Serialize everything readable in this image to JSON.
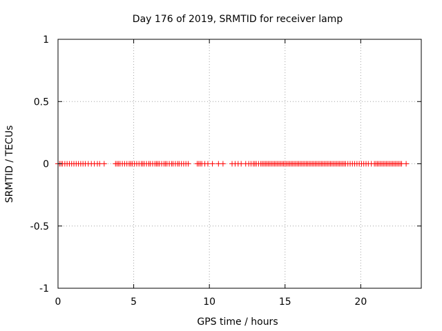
{
  "chart_data": {
    "type": "scatter",
    "title": "Day 176 of 2019, SRMTID for receiver lamp",
    "xlabel": "GPS time / hours",
    "ylabel": "SRMTID / TECUs",
    "xlim": [
      0,
      24
    ],
    "ylim": [
      -1,
      1
    ],
    "xticks": [
      0,
      5,
      10,
      15,
      20
    ],
    "yticks": [
      -1,
      -0.5,
      0,
      0.5,
      1
    ],
    "xtick_labels": [
      "0",
      "5",
      "10",
      "15",
      "20"
    ],
    "ytick_labels": [
      "-1",
      "-0.5",
      "0",
      "0.5",
      "1"
    ],
    "grid": true,
    "marker": "+",
    "series": [
      {
        "name": "SRMTID",
        "color": "#ff0000",
        "x": [
          0.0,
          0.1,
          0.2,
          0.3,
          0.45,
          0.6,
          0.75,
          0.9,
          1.05,
          1.2,
          1.35,
          1.5,
          1.65,
          1.8,
          2.0,
          2.2,
          2.4,
          2.6,
          2.75,
          3.05,
          3.8,
          3.9,
          4.0,
          4.1,
          4.25,
          4.4,
          4.55,
          4.7,
          4.8,
          4.9,
          5.05,
          5.2,
          5.35,
          5.5,
          5.6,
          5.7,
          5.85,
          6.0,
          6.1,
          6.25,
          6.4,
          6.5,
          6.6,
          6.7,
          6.85,
          7.0,
          7.1,
          7.2,
          7.35,
          7.5,
          7.6,
          7.75,
          7.9,
          8.0,
          8.15,
          8.3,
          8.45,
          8.6,
          9.2,
          9.3,
          9.4,
          9.5,
          9.7,
          9.9,
          10.2,
          10.6,
          10.9,
          11.5,
          11.7,
          11.9,
          12.1,
          12.4,
          12.6,
          12.75,
          12.9,
          13.0,
          13.1,
          13.25,
          13.4,
          13.5,
          13.6,
          13.7,
          13.8,
          13.9,
          14.0,
          14.1,
          14.2,
          14.3,
          14.4,
          14.5,
          14.6,
          14.7,
          14.8,
          14.9,
          15.0,
          15.1,
          15.2,
          15.3,
          15.4,
          15.5,
          15.6,
          15.7,
          15.8,
          15.9,
          16.0,
          16.1,
          16.2,
          16.3,
          16.4,
          16.5,
          16.6,
          16.7,
          16.8,
          16.9,
          17.0,
          17.1,
          17.2,
          17.3,
          17.4,
          17.5,
          17.6,
          17.7,
          17.8,
          17.9,
          18.0,
          18.1,
          18.2,
          18.3,
          18.4,
          18.5,
          18.6,
          18.7,
          18.8,
          18.9,
          19.0,
          19.15,
          19.3,
          19.45,
          19.6,
          19.75,
          19.9,
          20.05,
          20.2,
          20.35,
          20.5,
          20.7,
          20.9,
          21.0,
          21.1,
          21.2,
          21.3,
          21.4,
          21.5,
          21.6,
          21.7,
          21.8,
          21.9,
          22.0,
          22.1,
          22.2,
          22.3,
          22.4,
          22.5,
          22.6,
          22.7,
          23.0
        ],
        "y": [
          0,
          0,
          0,
          0,
          0,
          0,
          0,
          0,
          0,
          0,
          0,
          0,
          0,
          0,
          0,
          0,
          0,
          0,
          0,
          0,
          0,
          0,
          0,
          0,
          0,
          0,
          0,
          0,
          0,
          0,
          0,
          0,
          0,
          0,
          0,
          0,
          0,
          0,
          0,
          0,
          0,
          0,
          0,
          0,
          0,
          0,
          0,
          0,
          0,
          0,
          0,
          0,
          0,
          0,
          0,
          0,
          0,
          0,
          0,
          0,
          0,
          0,
          0,
          0,
          0,
          0,
          0,
          0,
          0,
          0,
          0,
          0,
          0,
          0,
          0,
          0,
          0,
          0,
          0,
          0,
          0,
          0,
          0,
          0,
          0,
          0,
          0,
          0,
          0,
          0,
          0,
          0,
          0,
          0,
          0,
          0,
          0,
          0,
          0,
          0,
          0,
          0,
          0,
          0,
          0,
          0,
          0,
          0,
          0,
          0,
          0,
          0,
          0,
          0,
          0,
          0,
          0,
          0,
          0,
          0,
          0,
          0,
          0,
          0,
          0,
          0,
          0,
          0,
          0,
          0,
          0,
          0,
          0,
          0,
          0,
          0,
          0,
          0,
          0,
          0,
          0,
          0,
          0,
          0,
          0,
          0,
          0,
          0,
          0,
          0,
          0,
          0,
          0,
          0,
          0,
          0,
          0,
          0,
          0,
          0,
          0,
          0,
          0,
          0,
          0,
          0
        ]
      }
    ]
  }
}
